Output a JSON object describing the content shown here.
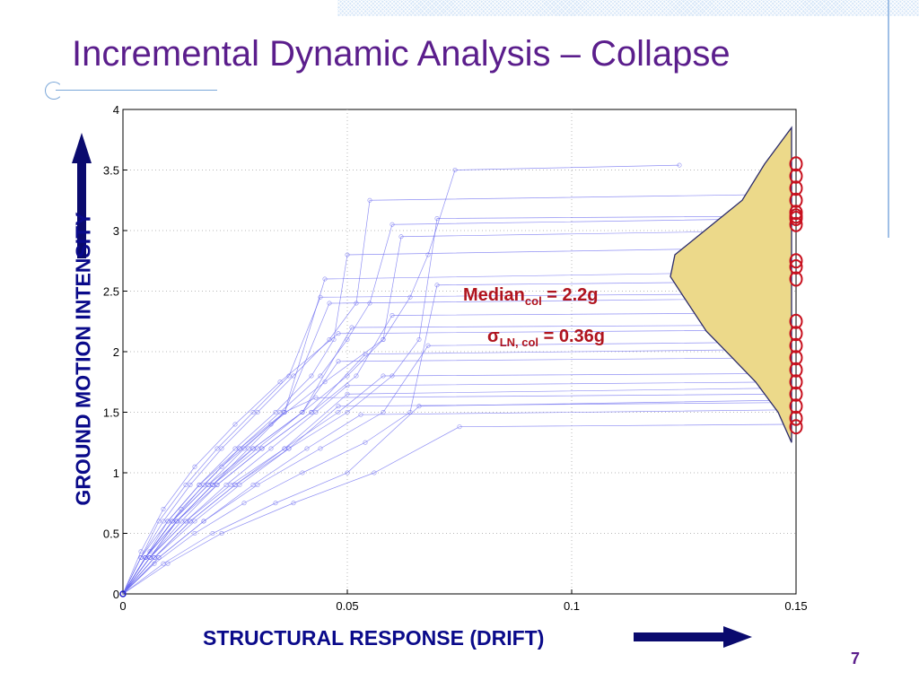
{
  "slide": {
    "title": "Incremental Dynamic Analysis – Collapse",
    "page_number": "7"
  },
  "colors": {
    "title": "#5b1e8c",
    "axis_label": "#0a0a8a",
    "curves": "#6b6bf0",
    "distribution_fill": "#ecd98a",
    "distribution_edge": "#2a2a6a",
    "collapse_markers": "#c8101e",
    "annotation": "#b0141e"
  },
  "annotations": {
    "median_prefix": "Median",
    "median_sub": "col",
    "median_value": " = 2.2g",
    "sigma_prefix": "σ",
    "sigma_sub": "LN, col",
    "sigma_value": " = 0.36g"
  },
  "chart_data": {
    "type": "line",
    "xlabel": "STRUCTURAL RESPONSE (DRIFT)",
    "ylabel": "GROUND MOTION INTENSITY",
    "xlim": [
      0,
      0.15
    ],
    "ylim": [
      0,
      4
    ],
    "x_ticks": [
      "0",
      "0.05",
      "0.1",
      "0.15"
    ],
    "y_ticks": [
      "0",
      "0.5",
      "1",
      "1.5",
      "2",
      "2.5",
      "3",
      "3.5",
      "4"
    ],
    "grid": true,
    "series": [
      {
        "x": [
          0,
          0.006,
          0.013,
          0.022,
          0.033,
          0.045,
          0.058,
          0.064,
          0.068,
          0.074,
          0.124
        ],
        "y": [
          0,
          0.35,
          0.7,
          1.05,
          1.4,
          1.75,
          2.1,
          2.45,
          2.8,
          3.5,
          3.54
        ]
      },
      {
        "x": [
          0,
          0.005,
          0.011,
          0.018,
          0.026,
          0.035,
          0.044,
          0.05,
          0.055,
          0.06,
          0.148
        ],
        "y": [
          0,
          0.3,
          0.6,
          0.9,
          1.2,
          1.5,
          1.8,
          2.1,
          2.4,
          3.05,
          3.1
        ]
      },
      {
        "x": [
          0,
          0.007,
          0.015,
          0.025,
          0.037,
          0.05,
          0.06,
          0.066,
          0.07,
          0.148
        ],
        "y": [
          0,
          0.3,
          0.6,
          0.9,
          1.2,
          1.5,
          1.8,
          2.1,
          3.1,
          3.12
        ]
      },
      {
        "x": [
          0,
          0.004,
          0.009,
          0.015,
          0.022,
          0.03,
          0.038,
          0.046,
          0.052,
          0.055,
          0.148
        ],
        "y": [
          0,
          0.3,
          0.6,
          0.9,
          1.2,
          1.5,
          1.8,
          2.1,
          2.4,
          3.25,
          3.3
        ]
      },
      {
        "x": [
          0,
          0.006,
          0.012,
          0.02,
          0.029,
          0.04,
          0.05,
          0.058,
          0.062,
          0.148
        ],
        "y": [
          0,
          0.3,
          0.6,
          0.9,
          1.2,
          1.5,
          1.8,
          2.1,
          2.95,
          3.0
        ]
      },
      {
        "x": [
          0,
          0.005,
          0.01,
          0.017,
          0.025,
          0.034,
          0.042,
          0.047,
          0.05,
          0.148
        ],
        "y": [
          0,
          0.3,
          0.6,
          0.9,
          1.2,
          1.5,
          1.8,
          2.1,
          2.8,
          2.86
        ]
      },
      {
        "x": [
          0,
          0.007,
          0.016,
          0.027,
          0.04,
          0.054,
          0.064,
          0.07,
          0.148
        ],
        "y": [
          0,
          0.25,
          0.5,
          0.75,
          1.0,
          1.25,
          1.5,
          2.55,
          2.58
        ]
      },
      {
        "x": [
          0,
          0.004,
          0.008,
          0.014,
          0.021,
          0.029,
          0.037,
          0.044,
          0.148
        ],
        "y": [
          0,
          0.3,
          0.6,
          0.9,
          1.2,
          1.5,
          1.8,
          2.45,
          2.48
        ]
      },
      {
        "x": [
          0,
          0.006,
          0.013,
          0.021,
          0.031,
          0.042,
          0.052,
          0.06,
          0.148
        ],
        "y": [
          0,
          0.3,
          0.6,
          0.9,
          1.2,
          1.5,
          1.8,
          2.3,
          2.32
        ]
      },
      {
        "x": [
          0,
          0.005,
          0.011,
          0.019,
          0.029,
          0.04,
          0.051,
          0.148
        ],
        "y": [
          0,
          0.3,
          0.6,
          0.9,
          1.2,
          1.5,
          2.2,
          2.22
        ]
      },
      {
        "x": [
          0,
          0.008,
          0.018,
          0.03,
          0.044,
          0.058,
          0.068,
          0.148
        ],
        "y": [
          0,
          0.3,
          0.6,
          0.9,
          1.2,
          1.5,
          2.05,
          2.08
        ]
      },
      {
        "x": [
          0,
          0.005,
          0.012,
          0.02,
          0.03,
          0.04,
          0.048,
          0.148
        ],
        "y": [
          0,
          0.3,
          0.6,
          0.9,
          1.2,
          1.5,
          1.92,
          1.95
        ]
      },
      {
        "x": [
          0,
          0.007,
          0.015,
          0.025,
          0.036,
          0.048,
          0.058,
          0.148
        ],
        "y": [
          0,
          0.3,
          0.6,
          0.9,
          1.2,
          1.5,
          1.8,
          1.82
        ]
      },
      {
        "x": [
          0,
          0.006,
          0.014,
          0.024,
          0.036,
          0.05,
          0.148
        ],
        "y": [
          0,
          0.3,
          0.6,
          0.9,
          1.2,
          1.65,
          1.7
        ]
      },
      {
        "x": [
          0,
          0.009,
          0.02,
          0.034,
          0.05,
          0.066,
          0.148
        ],
        "y": [
          0,
          0.25,
          0.5,
          0.75,
          1.0,
          1.55,
          1.6
        ]
      },
      {
        "x": [
          0,
          0.01,
          0.022,
          0.038,
          0.056,
          0.075,
          0.148
        ],
        "y": [
          0,
          0.25,
          0.5,
          0.75,
          1.0,
          1.38,
          1.4
        ]
      },
      {
        "x": [
          0,
          0.004,
          0.009,
          0.016,
          0.025,
          0.035,
          0.048,
          0.148
        ],
        "y": [
          0,
          0.35,
          0.7,
          1.05,
          1.4,
          1.75,
          2.15,
          2.18
        ]
      },
      {
        "x": [
          0,
          0.006,
          0.014,
          0.023,
          0.033,
          0.043,
          0.05,
          0.148
        ],
        "y": [
          0,
          0.3,
          0.6,
          0.9,
          1.2,
          1.5,
          1.72,
          1.75
        ]
      },
      {
        "x": [
          0,
          0.005,
          0.011,
          0.019,
          0.027,
          0.036,
          0.043,
          0.148
        ],
        "y": [
          0,
          0.3,
          0.6,
          0.9,
          1.2,
          1.5,
          1.62,
          1.65
        ]
      },
      {
        "x": [
          0,
          0.008,
          0.018,
          0.029,
          0.041,
          0.053,
          0.148
        ],
        "y": [
          0,
          0.3,
          0.6,
          0.9,
          1.2,
          1.48,
          1.52
        ]
      },
      {
        "x": [
          0,
          0.005,
          0.012,
          0.021,
          0.031,
          0.042,
          0.054,
          0.148
        ],
        "y": [
          0,
          0.3,
          0.6,
          0.9,
          1.2,
          1.5,
          1.98,
          2.02
        ]
      },
      {
        "x": [
          0,
          0.007,
          0.016,
          0.026,
          0.037,
          0.048,
          0.148
        ],
        "y": [
          0,
          0.3,
          0.6,
          0.9,
          1.2,
          1.55,
          1.58
        ]
      },
      {
        "x": [
          0,
          0.004,
          0.01,
          0.017,
          0.026,
          0.036,
          0.046,
          0.148
        ],
        "y": [
          0,
          0.3,
          0.6,
          0.9,
          1.2,
          1.5,
          2.4,
          2.44
        ]
      },
      {
        "x": [
          0,
          0.006,
          0.012,
          0.02,
          0.028,
          0.036,
          0.045,
          0.148
        ],
        "y": [
          0,
          0.3,
          0.6,
          0.9,
          1.2,
          1.5,
          2.6,
          2.66
        ]
      }
    ],
    "collapse_points": {
      "x": 0.15,
      "y": [
        3.55,
        3.45,
        3.35,
        3.25,
        3.15,
        3.12,
        3.1,
        3.05,
        2.75,
        2.7,
        2.6,
        2.25,
        2.15,
        2.05,
        1.95,
        1.85,
        1.75,
        1.65,
        1.55,
        1.45,
        1.38
      ]
    },
    "collapse_distribution": {
      "x_width": [
        0.0,
        0.003,
        0.008,
        0.014,
        0.019,
        0.024,
        0.027,
        0.026,
        0.021,
        0.016,
        0.011,
        0.006,
        0.0
      ],
      "y": [
        1.25,
        1.5,
        1.75,
        1.98,
        2.17,
        2.45,
        2.62,
        2.8,
        2.95,
        3.1,
        3.25,
        3.55,
        3.85
      ]
    }
  }
}
